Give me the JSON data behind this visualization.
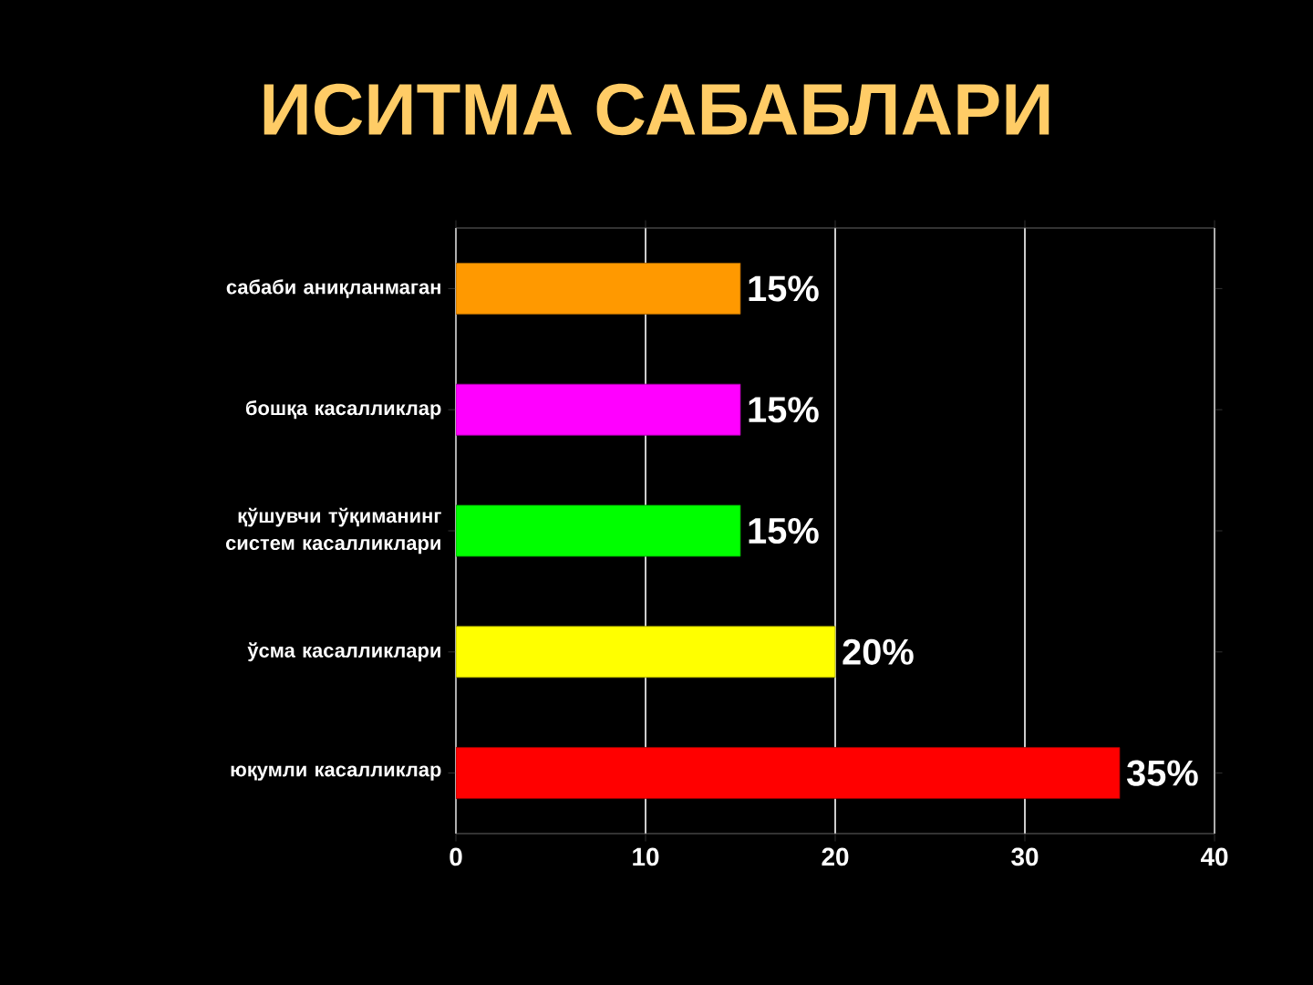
{
  "chart_data": {
    "type": "bar",
    "orientation": "horizontal",
    "title": "ИСИТМА САБАБЛАРИ",
    "categories": [
      "сабаби аниқланмаган",
      "бошқа касалликлар",
      "қўшувчи тўқиманинг систем касалликлари",
      "ўсма касалликлари",
      "юқумли касалликлар"
    ],
    "values": [
      15,
      15,
      15,
      20,
      35
    ],
    "colors": [
      "#ff9900",
      "#ff00ff",
      "#00ff00",
      "#ffff00",
      "#ff0000"
    ],
    "value_labels": [
      "15%",
      "15%",
      "15%",
      "20%",
      "35%"
    ],
    "xlim": [
      0,
      40
    ],
    "xticks": [
      0,
      10,
      20,
      30,
      40
    ],
    "grid": "x"
  }
}
